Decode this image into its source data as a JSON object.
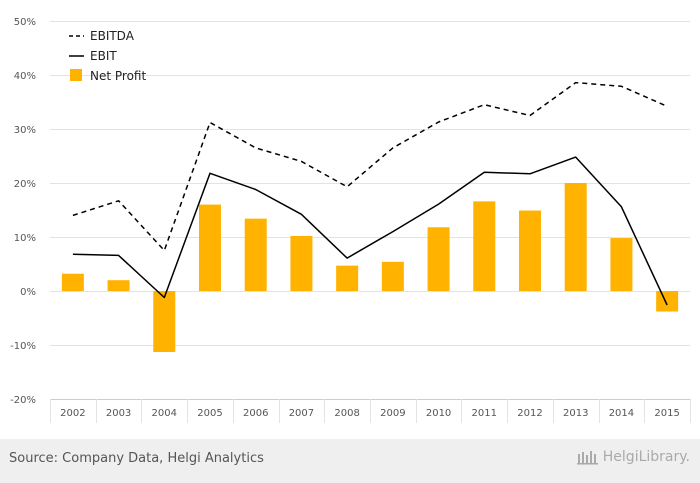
{
  "chart_data": {
    "type": "bar",
    "categories": [
      "2002",
      "2003",
      "2004",
      "2005",
      "2006",
      "2007",
      "2008",
      "2009",
      "2010",
      "2011",
      "2012",
      "2013",
      "2014",
      "2015"
    ],
    "series": [
      {
        "name": "EBITDA",
        "type": "line",
        "style": "dashed",
        "color": "#000000",
        "values": [
          14.0,
          16.7,
          7.5,
          31.2,
          26.5,
          24.0,
          19.3,
          26.5,
          31.3,
          34.5,
          32.5,
          38.6,
          37.9,
          34.2
        ]
      },
      {
        "name": "EBIT",
        "type": "line",
        "style": "solid",
        "color": "#000000",
        "values": [
          6.8,
          6.6,
          -1.2,
          21.8,
          18.8,
          14.2,
          6.1,
          11.0,
          16.1,
          22.0,
          21.7,
          24.8,
          15.6,
          -2.6
        ]
      },
      {
        "name": "Net Profit",
        "type": "bar",
        "color": "#ffb300",
        "values": [
          3.2,
          2.0,
          -11.3,
          16.0,
          13.4,
          10.2,
          4.7,
          5.4,
          11.8,
          16.6,
          14.9,
          20.0,
          9.8,
          -3.8
        ]
      }
    ],
    "ylim": [
      -20,
      50
    ],
    "yticks": [
      "-20%",
      "-10%",
      "0%",
      "10%",
      "20%",
      "30%",
      "40%",
      "50%"
    ],
    "ytick_values": [
      -20,
      -10,
      0,
      10,
      20,
      30,
      40,
      50
    ],
    "grid": true,
    "legend_position": "top-left"
  },
  "footer": {
    "source": "Source: Company Data, Helgi Analytics",
    "logo_text": "HelgiLibrary."
  }
}
